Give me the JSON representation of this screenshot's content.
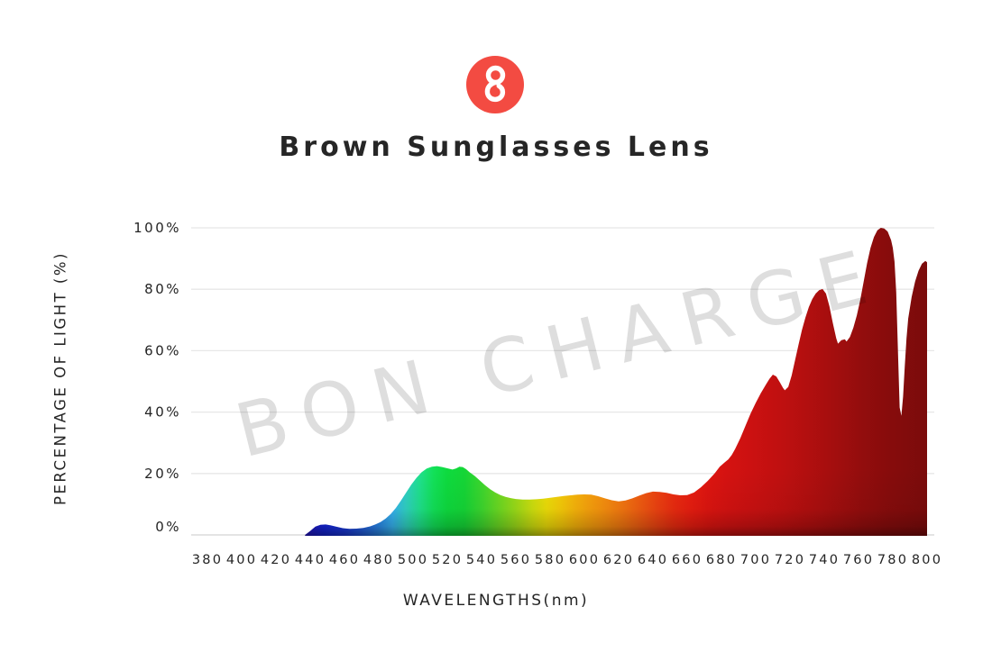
{
  "title": "Brown Sunglasses Lens",
  "watermark": "BON CHARGE",
  "logo": {
    "background": "#f34b42",
    "glyph_color": "#ffffff",
    "glyph": "figure-8-monogram"
  },
  "colors": {
    "text": "#242424",
    "grid": "#e7e7e7",
    "axis_line": "#dcdcdc",
    "watermark": "rgba(0,0,0,0.13)",
    "logo_red": "#f34b42"
  },
  "chart_data": {
    "type": "area",
    "title": "Brown Sunglasses Lens",
    "xlabel": "WAVELENGTHS(nm)",
    "ylabel": "PERCENTAGE OF LIGHT (%)",
    "xlim": [
      380,
      800
    ],
    "ylim": [
      0,
      100
    ],
    "grid": "horizontal",
    "x_tick_labels": [
      "380",
      "400",
      "420",
      "440",
      "460",
      "480",
      "500",
      "520",
      "540",
      "560",
      "580",
      "600",
      "620",
      "640",
      "660",
      "680",
      "700",
      "720",
      "740",
      "760",
      "780",
      "800"
    ],
    "y_tick_labels": [
      "0%",
      "20%",
      "40%",
      "60%",
      "80%",
      "100%"
    ],
    "y_tick_values": [
      0,
      20,
      40,
      60,
      80,
      100
    ],
    "series": [
      {
        "name": "light-transmission-percent",
        "points": [
          [
            437,
            0
          ],
          [
            440,
            1.3
          ],
          [
            443,
            2.7
          ],
          [
            446,
            3.3
          ],
          [
            449,
            3.4
          ],
          [
            452,
            3.1
          ],
          [
            455,
            2.7
          ],
          [
            459,
            2.2
          ],
          [
            463,
            2.0
          ],
          [
            467,
            2.05
          ],
          [
            471,
            2.3
          ],
          [
            475,
            2.8
          ],
          [
            478,
            3.4
          ],
          [
            481,
            4.2
          ],
          [
            484,
            5.3
          ],
          [
            487,
            6.8
          ],
          [
            490,
            8.8
          ],
          [
            493,
            11.2
          ],
          [
            496,
            13.8
          ],
          [
            499,
            16.4
          ],
          [
            502,
            18.6
          ],
          [
            505,
            20.4
          ],
          [
            508,
            21.6
          ],
          [
            511,
            22.2
          ],
          [
            514,
            22.4
          ],
          [
            517,
            22.1
          ],
          [
            520,
            21.7
          ],
          [
            523,
            21.3
          ],
          [
            525,
            21.6
          ],
          [
            527,
            22.2
          ],
          [
            529,
            22.1
          ],
          [
            531,
            21.4
          ],
          [
            533,
            20.4
          ],
          [
            536,
            19.2
          ],
          [
            539,
            17.7
          ],
          [
            542,
            16.2
          ],
          [
            545,
            14.9
          ],
          [
            548,
            13.8
          ],
          [
            551,
            13.0
          ],
          [
            554,
            12.4
          ],
          [
            557,
            12.0
          ],
          [
            560,
            11.7
          ],
          [
            564,
            11.5
          ],
          [
            568,
            11.5
          ],
          [
            572,
            11.6
          ],
          [
            576,
            11.8
          ],
          [
            580,
            12.1
          ],
          [
            584,
            12.4
          ],
          [
            588,
            12.7
          ],
          [
            592,
            12.9
          ],
          [
            596,
            13.1
          ],
          [
            600,
            13.2
          ],
          [
            604,
            13.1
          ],
          [
            608,
            12.6
          ],
          [
            612,
            11.9
          ],
          [
            616,
            11.3
          ],
          [
            620,
            10.9
          ],
          [
            624,
            11.2
          ],
          [
            628,
            11.9
          ],
          [
            632,
            12.8
          ],
          [
            636,
            13.6
          ],
          [
            640,
            14.1
          ],
          [
            644,
            14.0
          ],
          [
            648,
            13.7
          ],
          [
            652,
            13.2
          ],
          [
            656,
            12.9
          ],
          [
            660,
            13.0
          ],
          [
            664,
            13.8
          ],
          [
            668,
            15.5
          ],
          [
            672,
            17.6
          ],
          [
            676,
            20.0
          ],
          [
            679,
            22.2
          ],
          [
            682,
            23.7
          ],
          [
            684,
            24.6
          ],
          [
            686,
            26.0
          ],
          [
            688,
            28.0
          ],
          [
            691,
            31.5
          ],
          [
            694,
            35.5
          ],
          [
            697,
            39.5
          ],
          [
            700,
            43.0
          ],
          [
            703,
            46.2
          ],
          [
            706,
            49.0
          ],
          [
            708,
            50.8
          ],
          [
            710,
            52.2
          ],
          [
            712,
            51.6
          ],
          [
            714,
            49.8
          ],
          [
            716,
            47.8
          ],
          [
            717,
            47.1
          ],
          [
            719,
            48.2
          ],
          [
            721,
            52.0
          ],
          [
            723,
            57.0
          ],
          [
            725,
            62.0
          ],
          [
            727,
            66.8
          ],
          [
            729,
            70.8
          ],
          [
            731,
            74.2
          ],
          [
            733,
            76.8
          ],
          [
            735,
            78.6
          ],
          [
            737,
            79.7
          ],
          [
            739,
            80.1
          ],
          [
            741,
            78.6
          ],
          [
            743,
            74.5
          ],
          [
            745,
            69.0
          ],
          [
            747,
            64.0
          ],
          [
            748,
            62.3
          ],
          [
            750,
            63.4
          ],
          [
            752,
            63.7
          ],
          [
            753,
            63.0
          ],
          [
            755,
            64.5
          ],
          [
            757,
            67.5
          ],
          [
            759,
            71.5
          ],
          [
            761,
            76.5
          ],
          [
            763,
            82.5
          ],
          [
            765,
            88.5
          ],
          [
            767,
            93.5
          ],
          [
            769,
            97.0
          ],
          [
            771,
            99.2
          ],
          [
            773,
            100.0
          ],
          [
            775,
            99.8
          ],
          [
            777,
            98.8
          ],
          [
            779,
            96.0
          ],
          [
            780,
            93.5
          ],
          [
            781,
            89.0
          ],
          [
            782,
            79.0
          ],
          [
            783,
            60.0
          ],
          [
            784,
            41.5
          ],
          [
            785,
            38.8
          ],
          [
            786,
            45.0
          ],
          [
            787,
            55.0
          ],
          [
            788,
            64.0
          ],
          [
            789,
            70.5
          ],
          [
            791,
            77.5
          ],
          [
            793,
            82.5
          ],
          [
            795,
            86.0
          ],
          [
            797,
            88.3
          ],
          [
            799,
            89.2
          ],
          [
            800,
            88.8
          ]
        ]
      }
    ],
    "spectral_stops": [
      [
        437,
        "#2616c8"
      ],
      [
        448,
        "#1526e2"
      ],
      [
        460,
        "#1c3ce8"
      ],
      [
        470,
        "#2361ec"
      ],
      [
        480,
        "#2b8cf0"
      ],
      [
        488,
        "#36b4f2"
      ],
      [
        496,
        "#2fd2c2"
      ],
      [
        504,
        "#1fe18c"
      ],
      [
        512,
        "#12e158"
      ],
      [
        520,
        "#0edb3e"
      ],
      [
        530,
        "#15d636"
      ],
      [
        540,
        "#3cd72e"
      ],
      [
        550,
        "#6cda22"
      ],
      [
        560,
        "#9cdc18"
      ],
      [
        570,
        "#cfe00e"
      ],
      [
        578,
        "#eede08"
      ],
      [
        586,
        "#f6cc08"
      ],
      [
        594,
        "#f8b60a"
      ],
      [
        602,
        "#f8a30c"
      ],
      [
        612,
        "#f78e0e"
      ],
      [
        622,
        "#f47710"
      ],
      [
        632,
        "#f15d11"
      ],
      [
        642,
        "#ee4311"
      ],
      [
        652,
        "#eb2c10"
      ],
      [
        662,
        "#e81d10"
      ],
      [
        672,
        "#de1510"
      ],
      [
        684,
        "#d41211"
      ],
      [
        698,
        "#cb1111"
      ],
      [
        714,
        "#c01010"
      ],
      [
        730,
        "#b20f0f"
      ],
      [
        746,
        "#a30e0e"
      ],
      [
        762,
        "#930d0d"
      ],
      [
        778,
        "#870c0c"
      ],
      [
        800,
        "#7b0b0b"
      ]
    ]
  }
}
